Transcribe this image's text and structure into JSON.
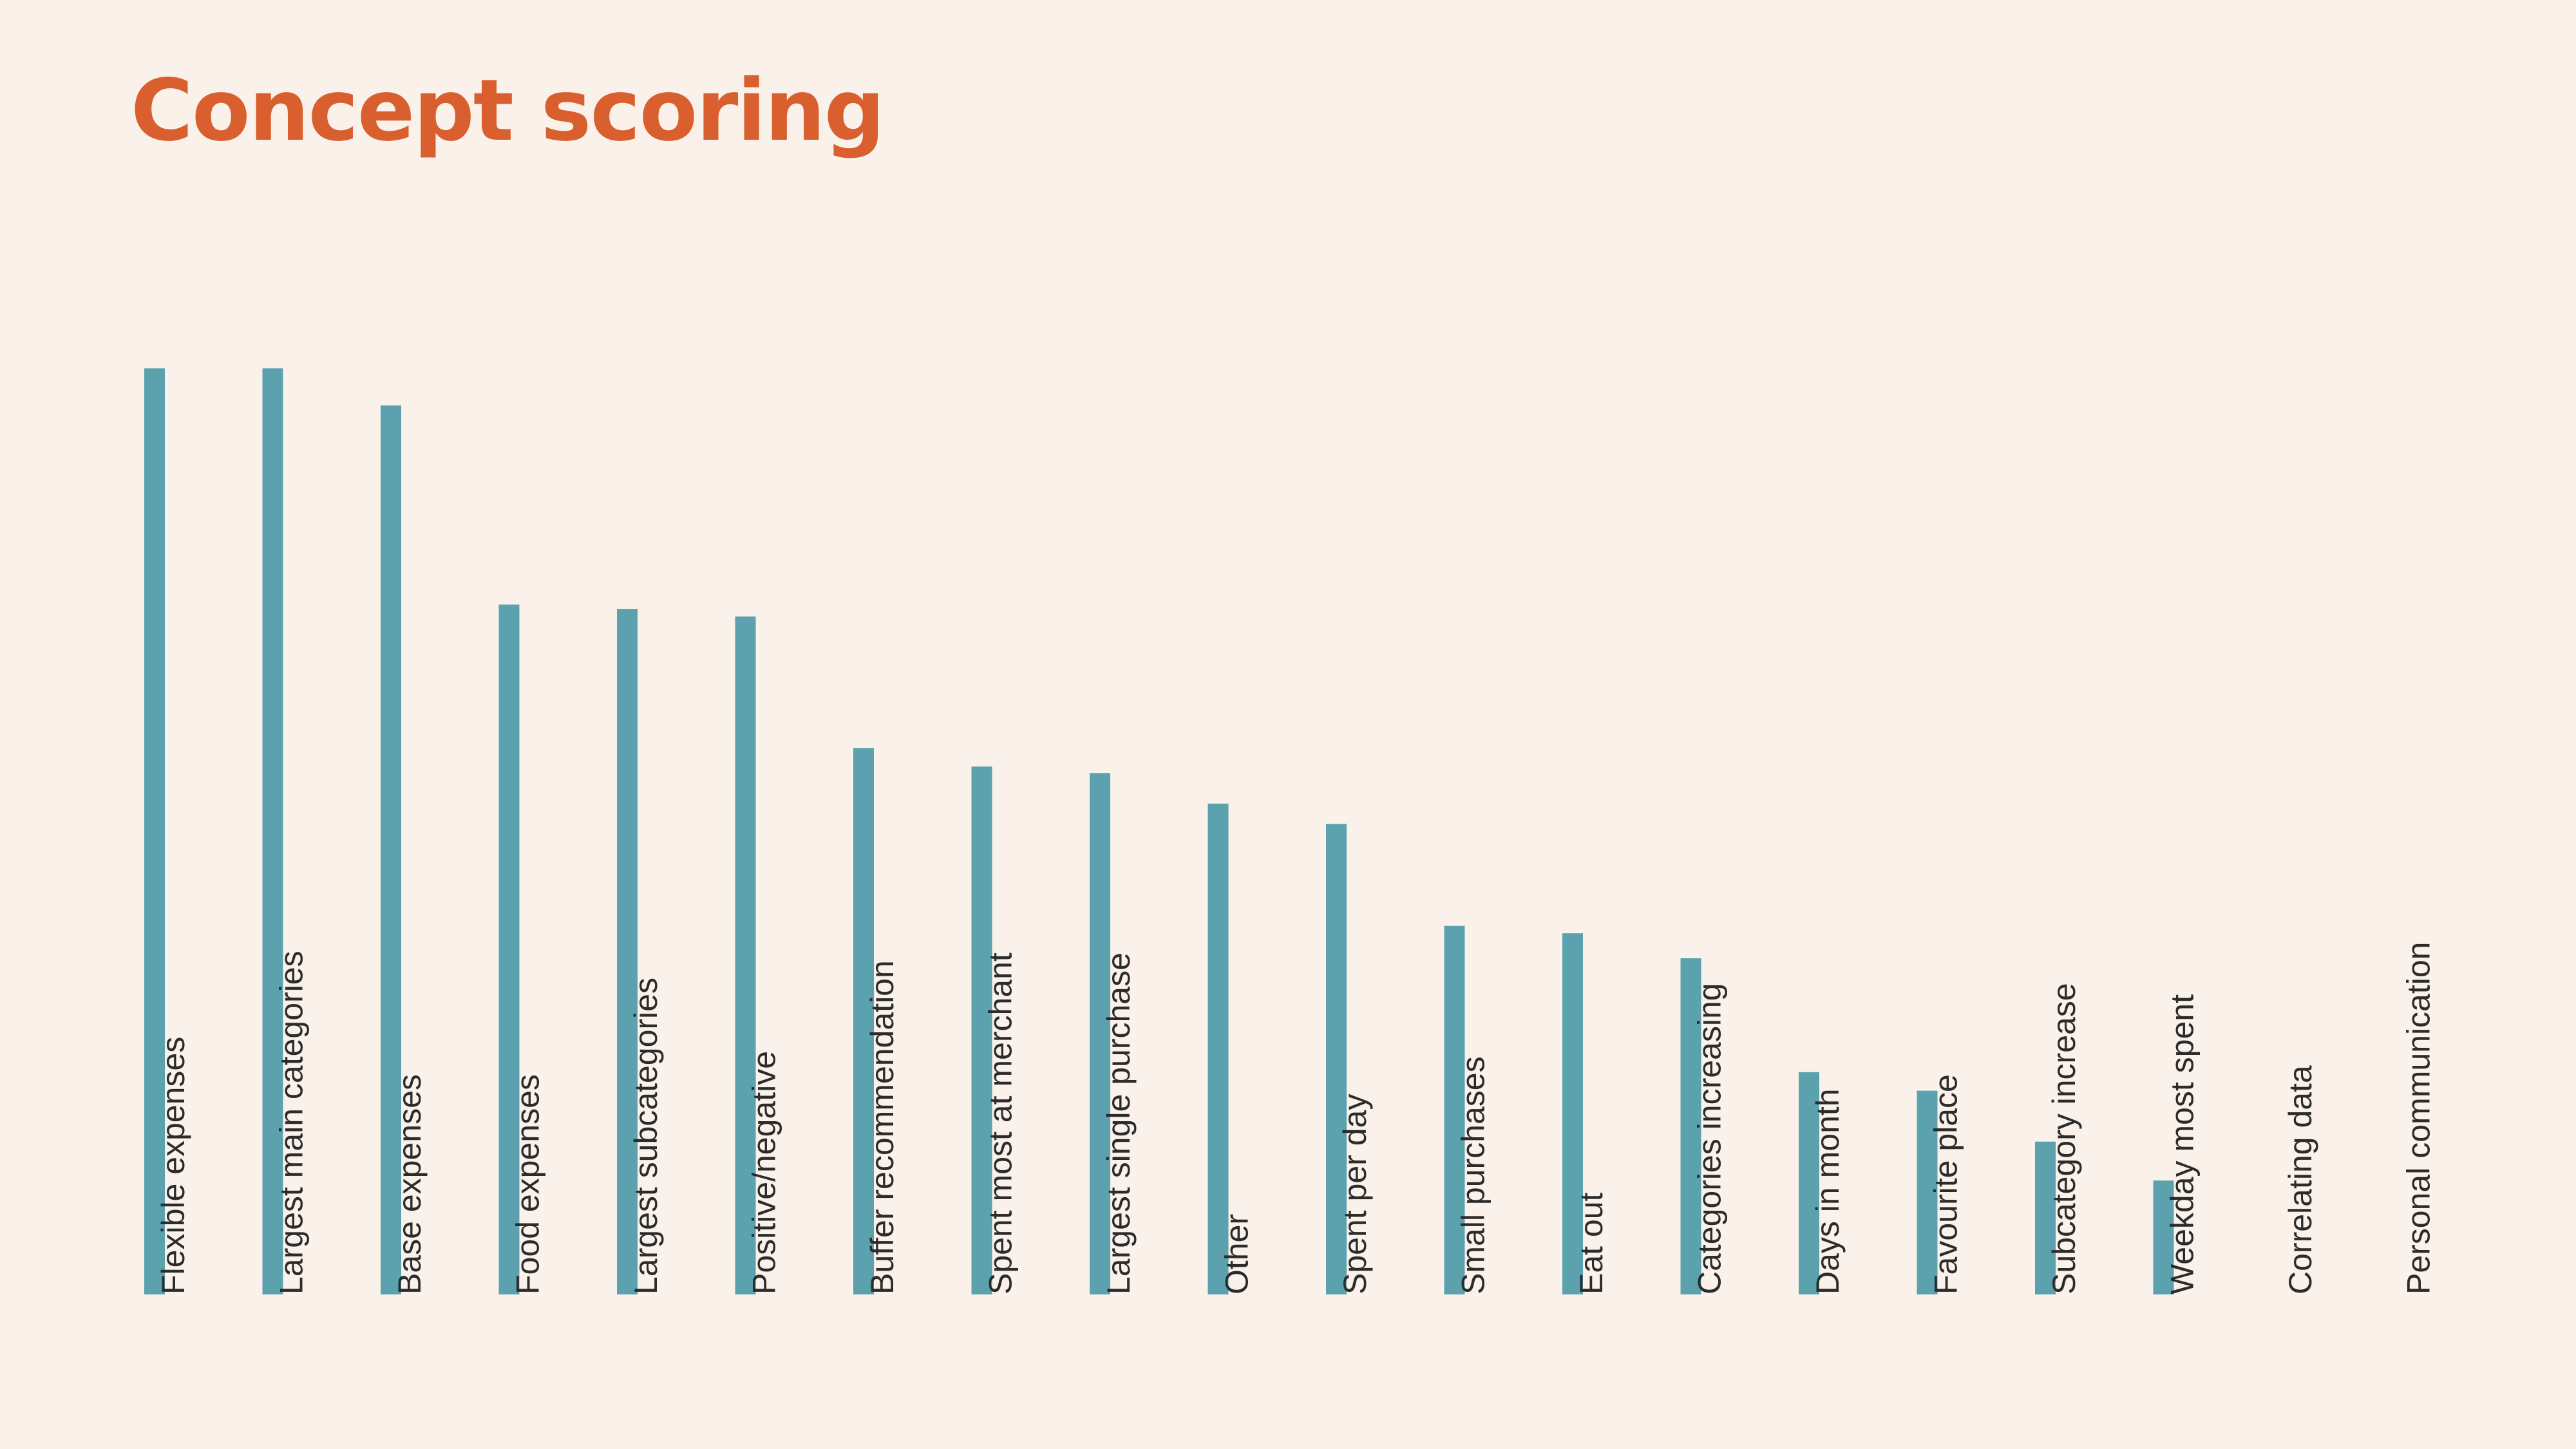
{
  "slide": {
    "title": "Concept scoring",
    "title_color": "#d95f2e",
    "background": "#f9f1ea"
  },
  "chart_data": {
    "type": "bar",
    "orientation": "vertical",
    "title": "Concept scoring",
    "xlabel": "",
    "ylabel": "",
    "bar_color": "#5ba2ae",
    "label_color": "#2b2b2b",
    "grid": false,
    "legend": "none",
    "axes_visible": false,
    "tick_label_rotation": -90,
    "ylim": [
      0,
      100
    ],
    "categories": [
      "Flexible expenses",
      "Largest main categories",
      "Base expenses",
      "Food expenses",
      "Largest subcategories",
      "Positive/negative",
      "Buffer recommendation",
      "Spent most at merchant",
      "Largest single purchase",
      "Other",
      "Spent per day",
      "Small purchases",
      "Eat out",
      "Categories increasing",
      "Days in month",
      "Favourite place",
      "Subcategory increase",
      "Weekday most spent",
      "Correlating data",
      "Personal communication"
    ],
    "values": [
      100,
      100,
      96,
      74.5,
      74,
      73.2,
      59,
      57,
      56.3,
      53,
      50.8,
      39.8,
      39,
      36.3,
      24,
      22,
      16.5,
      12.3,
      0,
      0
    ]
  }
}
